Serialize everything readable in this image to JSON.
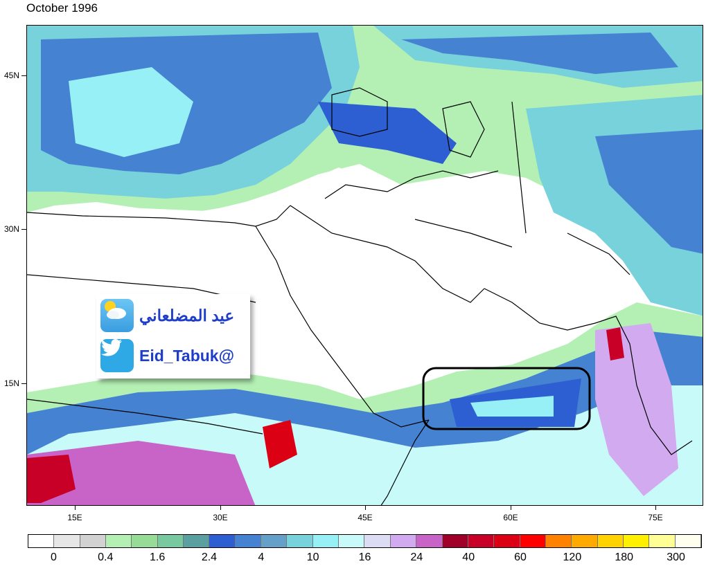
{
  "title": "October 1996",
  "map": {
    "y_axis_labels": [
      "45N",
      "30N",
      "15N"
    ],
    "x_axis_labels": [
      "15E",
      "30E",
      "45E",
      "60E",
      "75E"
    ],
    "highlight_box": "Arabian Sea region 50E–67E, 10N–17N"
  },
  "colorbar": {
    "labels": [
      "0",
      "0.4",
      "1.6",
      "2.4",
      "4",
      "10",
      "16",
      "24",
      "40",
      "60",
      "120",
      "180",
      "300"
    ],
    "colors": [
      "#ffffff",
      "#e6e6e6",
      "#d2d2d2",
      "#b4f0b4",
      "#96dc96",
      "#78c8a0",
      "#5aa0a0",
      "#2d5fd2",
      "#4682d2",
      "#64a0c8",
      "#78d2dc",
      "#96f0f5",
      "#c8fafa",
      "#dcdcf5",
      "#d2aaf0",
      "#c864c8",
      "#a00028",
      "#c80028",
      "#dc0014",
      "#ff0000",
      "#ff8200",
      "#ffaa00",
      "#ffd200",
      "#fff000",
      "#ffff96",
      "#fffff0"
    ]
  },
  "badge": {
    "name": "عيد المضلعاني",
    "handle": "Eid_Tabuk@",
    "weather_icon": "partly-cloudy-icon",
    "twitter_icon": "twitter-bird-icon"
  }
}
